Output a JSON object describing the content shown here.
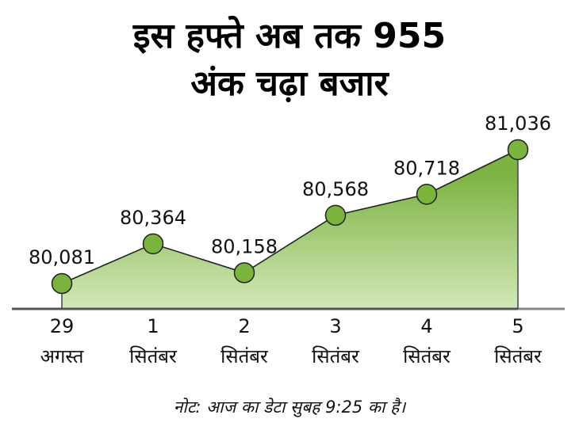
{
  "title": {
    "line1": "इस हफ्ते अब तक 955",
    "line2": "अंक चढ़ा बजार"
  },
  "note": "नोट: आज का डेटा सुबह 9:25 का है।",
  "colors": {
    "fill_top": "#7cb342",
    "fill_bottom": "#d3e8b9",
    "marker": "#7ab43c",
    "line": "#222222",
    "axis": "#555555",
    "axis_light": "#888888"
  },
  "chart_data": {
    "type": "area",
    "title": "इस हफ्ते अब तक 955 अंक चढ़ा बजार",
    "xlabel": "",
    "ylabel": "",
    "categories": [
      "29 अगस्त",
      "1 सितंबर",
      "2 सितंबर",
      "3 सितंबर",
      "4 सितंबर",
      "5 सितंबर"
    ],
    "x_day": [
      "29",
      "1",
      "2",
      "3",
      "4",
      "5"
    ],
    "x_month": [
      "अगस्त",
      "सितंबर",
      "सितंबर",
      "सितंबर",
      "सितंबर",
      "सितंबर"
    ],
    "values": [
      80081,
      80364,
      80158,
      80568,
      80718,
      81036
    ],
    "value_labels": [
      "80,081",
      "80,364",
      "80,158",
      "80,568",
      "80,718",
      "81,036"
    ],
    "grid": false,
    "legend": "none",
    "annotation": "नोट: आज का डेटा सुबह 9:25 का है।"
  }
}
